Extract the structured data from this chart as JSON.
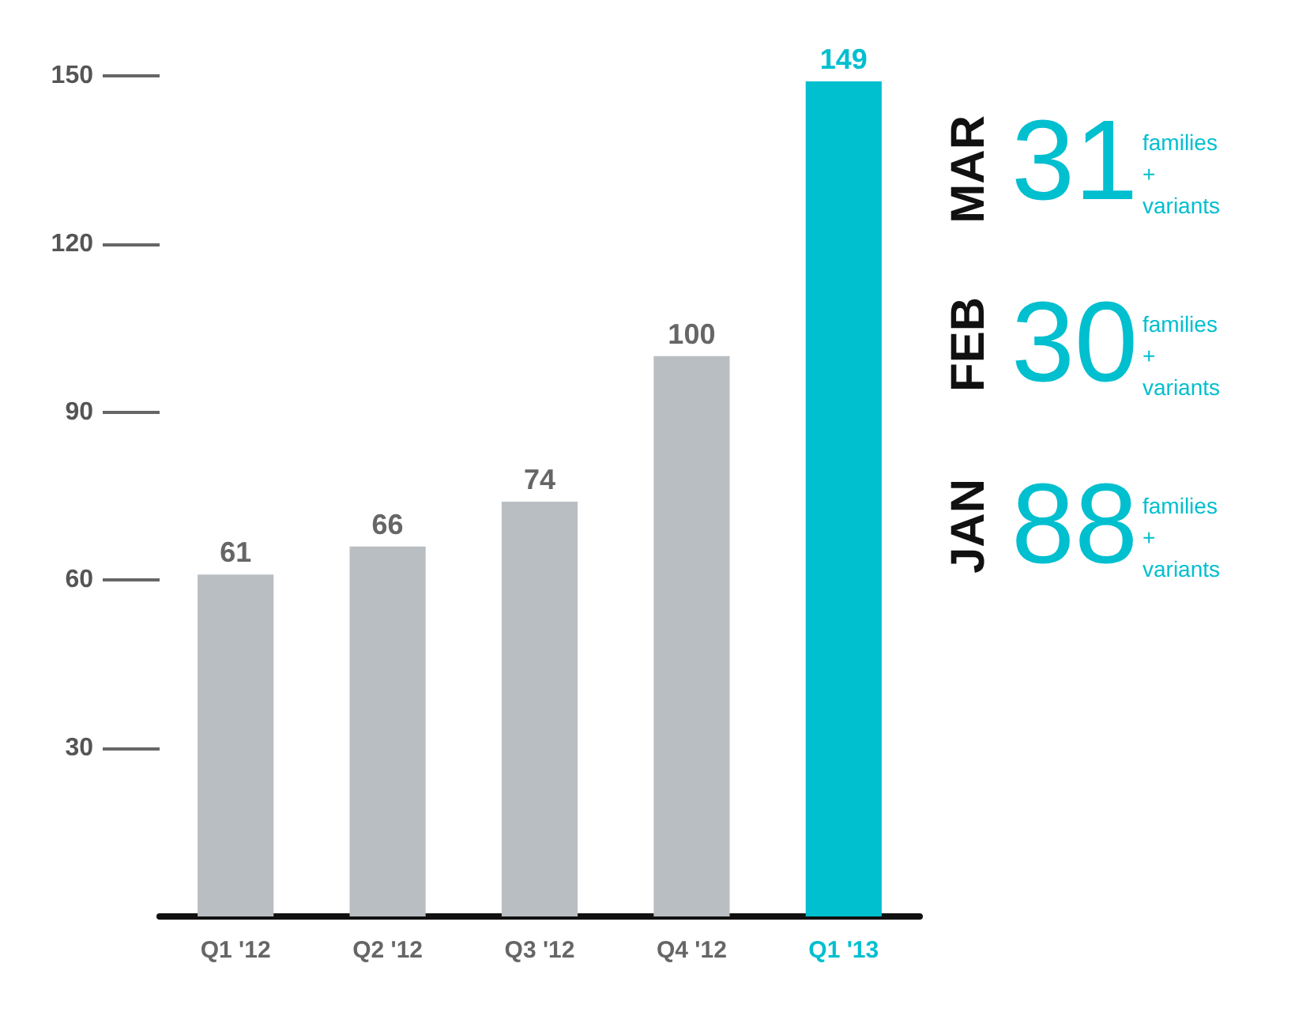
{
  "chart_data": {
    "type": "bar",
    "categories": [
      "Q1 '12",
      "Q2 '12",
      "Q3 '12",
      "Q4 '12",
      "Q1 '13"
    ],
    "values": [
      61,
      66,
      74,
      100,
      149
    ],
    "colors": [
      "#b9bec3",
      "#b9bec3",
      "#b9bec3",
      "#b9bec3",
      "#00bfcf"
    ],
    "ylim": [
      0,
      150
    ],
    "yticks": [
      30,
      60,
      90,
      120,
      150
    ],
    "grid": false,
    "data_labels": true,
    "annotations": [
      "MAR",
      "31",
      "families\n+\nvariants",
      "FEB",
      "30",
      "families\n+\nvariants",
      "JAN",
      "88",
      "families\n+\nvariants"
    ]
  }
}
